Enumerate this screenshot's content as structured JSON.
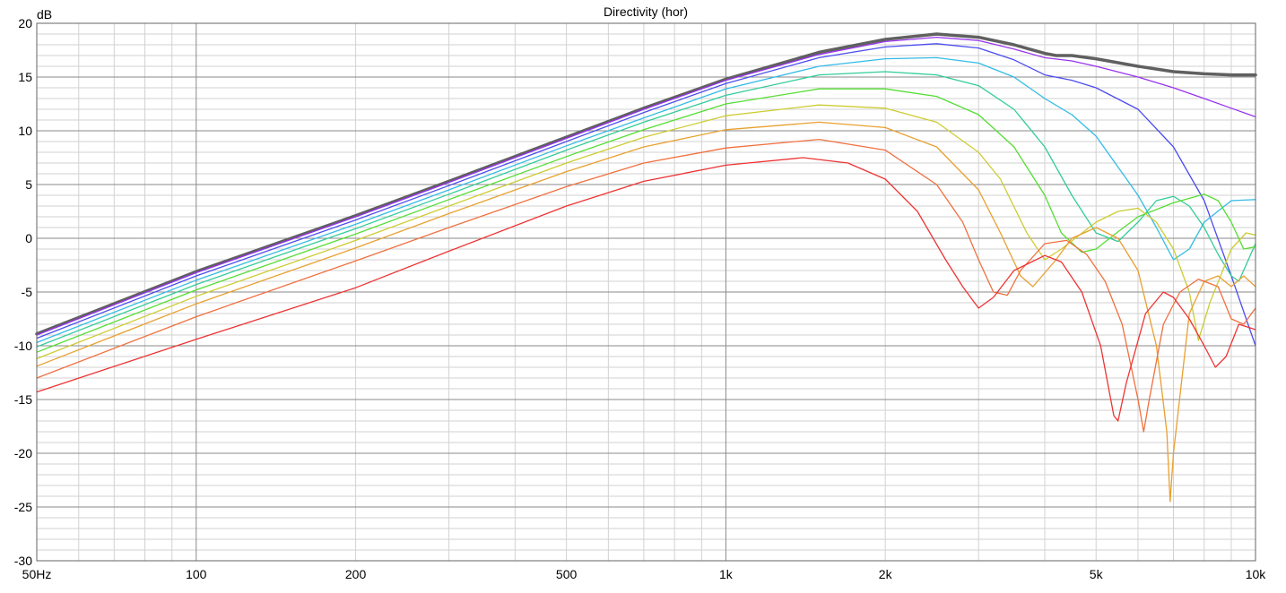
{
  "chart_data": {
    "type": "line",
    "title": "Directivity (hor)",
    "ylabel": "dB",
    "xlabel": "",
    "x_scale": "log",
    "xlim": [
      50,
      10000
    ],
    "ylim": [
      -30,
      20
    ],
    "grid": true,
    "x_ticks": [
      {
        "value": 50,
        "label": "50Hz"
      },
      {
        "value": 100,
        "label": "100"
      },
      {
        "value": 200,
        "label": "200"
      },
      {
        "value": 500,
        "label": "500"
      },
      {
        "value": 1000,
        "label": "1k"
      },
      {
        "value": 2000,
        "label": "2k"
      },
      {
        "value": 5000,
        "label": "5k"
      },
      {
        "value": 10000,
        "label": "10k"
      }
    ],
    "y_ticks": [
      {
        "value": 20,
        "label": "20"
      },
      {
        "value": 15,
        "label": "15"
      },
      {
        "value": 10,
        "label": "10"
      },
      {
        "value": 5,
        "label": "5"
      },
      {
        "value": 0,
        "label": "0"
      },
      {
        "value": -5,
        "label": "-5"
      },
      {
        "value": -10,
        "label": "-10"
      },
      {
        "value": -15,
        "label": "-15"
      },
      {
        "value": -20,
        "label": "-20"
      },
      {
        "value": -25,
        "label": "-25"
      },
      {
        "value": -30,
        "label": "-30"
      }
    ],
    "series": [
      {
        "color": "#606060",
        "width": 3.5,
        "points": [
          [
            50,
            -8.9
          ],
          [
            100,
            -3.1
          ],
          [
            200,
            2.1
          ],
          [
            300,
            5.3
          ],
          [
            500,
            9.4
          ],
          [
            700,
            12.1
          ],
          [
            1000,
            14.8
          ],
          [
            1500,
            17.3
          ],
          [
            2000,
            18.5
          ],
          [
            2500,
            19.0
          ],
          [
            3000,
            18.7
          ],
          [
            3500,
            18.0
          ],
          [
            4000,
            17.2
          ],
          [
            4200,
            17.0
          ],
          [
            4500,
            17.0
          ],
          [
            5000,
            16.7
          ],
          [
            6000,
            16.0
          ],
          [
            7000,
            15.5
          ],
          [
            8000,
            15.3
          ],
          [
            9000,
            15.2
          ],
          [
            10000,
            15.2
          ]
        ]
      },
      {
        "color": "#9933ee",
        "width": 1.3,
        "points": [
          [
            50,
            -9.0
          ],
          [
            100,
            -3.2
          ],
          [
            200,
            2.0
          ],
          [
            300,
            5.2
          ],
          [
            500,
            9.3
          ],
          [
            700,
            12.0
          ],
          [
            1000,
            14.7
          ],
          [
            1500,
            17.1
          ],
          [
            2000,
            18.3
          ],
          [
            2500,
            18.7
          ],
          [
            3000,
            18.4
          ],
          [
            3500,
            17.6
          ],
          [
            4000,
            16.8
          ],
          [
            4500,
            16.5
          ],
          [
            5000,
            16.0
          ],
          [
            6000,
            15.0
          ],
          [
            7000,
            14.0
          ],
          [
            8000,
            13.0
          ],
          [
            9000,
            12.1
          ],
          [
            10000,
            11.3
          ]
        ]
      },
      {
        "color": "#4c4cf0",
        "width": 1.3,
        "points": [
          [
            50,
            -9.3
          ],
          [
            100,
            -3.5
          ],
          [
            200,
            1.7
          ],
          [
            300,
            4.9
          ],
          [
            500,
            9.0
          ],
          [
            700,
            11.7
          ],
          [
            1000,
            14.4
          ],
          [
            1500,
            16.8
          ],
          [
            2000,
            17.8
          ],
          [
            2500,
            18.1
          ],
          [
            3000,
            17.7
          ],
          [
            3500,
            16.6
          ],
          [
            4000,
            15.2
          ],
          [
            4500,
            14.7
          ],
          [
            5000,
            14.0
          ],
          [
            6000,
            12.0
          ],
          [
            7000,
            8.5
          ],
          [
            8000,
            3.5
          ],
          [
            9000,
            -3.5
          ],
          [
            10000,
            -10.0
          ]
        ]
      },
      {
        "color": "#33bbe6",
        "width": 1.3,
        "points": [
          [
            50,
            -9.7
          ],
          [
            100,
            -3.9
          ],
          [
            200,
            1.3
          ],
          [
            300,
            4.5
          ],
          [
            500,
            8.6
          ],
          [
            700,
            11.2
          ],
          [
            1000,
            13.9
          ],
          [
            1500,
            16.0
          ],
          [
            2000,
            16.7
          ],
          [
            2500,
            16.8
          ],
          [
            3000,
            16.3
          ],
          [
            3500,
            15.0
          ],
          [
            4000,
            13.0
          ],
          [
            4500,
            11.5
          ],
          [
            5000,
            9.5
          ],
          [
            6000,
            4.0
          ],
          [
            6500,
            1.0
          ],
          [
            7000,
            -2.0
          ],
          [
            7500,
            -1.0
          ],
          [
            8000,
            1.5
          ],
          [
            9000,
            3.5
          ],
          [
            10000,
            3.6
          ]
        ]
      },
      {
        "color": "#33cc99",
        "width": 1.3,
        "points": [
          [
            50,
            -10.1
          ],
          [
            100,
            -4.3
          ],
          [
            200,
            0.9
          ],
          [
            300,
            4.1
          ],
          [
            500,
            8.2
          ],
          [
            700,
            10.8
          ],
          [
            1000,
            13.3
          ],
          [
            1500,
            15.2
          ],
          [
            2000,
            15.5
          ],
          [
            2500,
            15.2
          ],
          [
            3000,
            14.2
          ],
          [
            3500,
            12.0
          ],
          [
            4000,
            8.5
          ],
          [
            4500,
            4.0
          ],
          [
            5000,
            0.5
          ],
          [
            5500,
            -0.3
          ],
          [
            6000,
            1.5
          ],
          [
            6500,
            3.5
          ],
          [
            7000,
            3.9
          ],
          [
            7500,
            3.0
          ],
          [
            8000,
            1.0
          ],
          [
            8500,
            -1.5
          ],
          [
            9000,
            -3.5
          ],
          [
            9300,
            -4.0
          ],
          [
            10000,
            -0.5
          ]
        ]
      },
      {
        "color": "#55dd33",
        "width": 1.3,
        "points": [
          [
            50,
            -10.6
          ],
          [
            100,
            -4.8
          ],
          [
            200,
            0.4
          ],
          [
            300,
            3.6
          ],
          [
            500,
            7.6
          ],
          [
            700,
            10.1
          ],
          [
            1000,
            12.5
          ],
          [
            1500,
            13.9
          ],
          [
            2000,
            13.9
          ],
          [
            2500,
            13.2
          ],
          [
            3000,
            11.5
          ],
          [
            3500,
            8.5
          ],
          [
            4000,
            4.0
          ],
          [
            4300,
            0.5
          ],
          [
            4700,
            -1.3
          ],
          [
            5000,
            -1.0
          ],
          [
            5500,
            0.6
          ],
          [
            6000,
            2.0
          ],
          [
            7000,
            3.3
          ],
          [
            8000,
            4.1
          ],
          [
            8500,
            3.5
          ],
          [
            9000,
            1.5
          ],
          [
            9500,
            -1.0
          ],
          [
            10000,
            -0.8
          ]
        ]
      },
      {
        "color": "#cccc33",
        "width": 1.3,
        "points": [
          [
            50,
            -11.2
          ],
          [
            100,
            -5.4
          ],
          [
            200,
            -0.2
          ],
          [
            300,
            3.0
          ],
          [
            500,
            7.0
          ],
          [
            700,
            9.4
          ],
          [
            1000,
            11.4
          ],
          [
            1500,
            12.4
          ],
          [
            2000,
            12.1
          ],
          [
            2500,
            10.8
          ],
          [
            3000,
            8.0
          ],
          [
            3300,
            5.5
          ],
          [
            3700,
            0.5
          ],
          [
            4000,
            -2.0
          ],
          [
            4300,
            -1.0
          ],
          [
            5000,
            1.5
          ],
          [
            5500,
            2.5
          ],
          [
            6000,
            2.8
          ],
          [
            6500,
            1.5
          ],
          [
            7000,
            -1.0
          ],
          [
            7500,
            -5.0
          ],
          [
            7800,
            -9.5
          ],
          [
            8200,
            -6.0
          ],
          [
            9000,
            -1.0
          ],
          [
            9600,
            0.5
          ],
          [
            10000,
            0.3
          ]
        ]
      },
      {
        "color": "#e8a030",
        "width": 1.3,
        "points": [
          [
            50,
            -11.9
          ],
          [
            100,
            -6.1
          ],
          [
            200,
            -0.9
          ],
          [
            300,
            2.3
          ],
          [
            500,
            6.2
          ],
          [
            700,
            8.5
          ],
          [
            1000,
            10.1
          ],
          [
            1500,
            10.8
          ],
          [
            2000,
            10.3
          ],
          [
            2500,
            8.5
          ],
          [
            3000,
            4.5
          ],
          [
            3300,
            0.5
          ],
          [
            3600,
            -3.5
          ],
          [
            3800,
            -4.5
          ],
          [
            4200,
            -2.0
          ],
          [
            4500,
            0.0
          ],
          [
            5000,
            1.0
          ],
          [
            5500,
            0.0
          ],
          [
            6000,
            -3.0
          ],
          [
            6500,
            -10.0
          ],
          [
            6800,
            -18.0
          ],
          [
            6900,
            -24.5
          ],
          [
            7000,
            -20.0
          ],
          [
            7500,
            -7.0
          ],
          [
            8000,
            -4.0
          ],
          [
            8500,
            -3.5
          ],
          [
            9000,
            -4.5
          ],
          [
            9500,
            -3.5
          ],
          [
            10000,
            -4.5
          ]
        ]
      },
      {
        "color": "#f07040",
        "width": 1.3,
        "points": [
          [
            50,
            -13.0
          ],
          [
            100,
            -7.3
          ],
          [
            200,
            -2.1
          ],
          [
            300,
            1.0
          ],
          [
            500,
            4.8
          ],
          [
            700,
            7.0
          ],
          [
            1000,
            8.4
          ],
          [
            1500,
            9.2
          ],
          [
            2000,
            8.2
          ],
          [
            2500,
            5.0
          ],
          [
            2800,
            1.5
          ],
          [
            3000,
            -2.0
          ],
          [
            3200,
            -5.0
          ],
          [
            3400,
            -5.3
          ],
          [
            3600,
            -3.0
          ],
          [
            4000,
            -0.5
          ],
          [
            4400,
            -0.2
          ],
          [
            4800,
            -1.5
          ],
          [
            5200,
            -4.0
          ],
          [
            5600,
            -8.0
          ],
          [
            6000,
            -15.0
          ],
          [
            6150,
            -18.0
          ],
          [
            6300,
            -15.0
          ],
          [
            6700,
            -8.0
          ],
          [
            7200,
            -5.0
          ],
          [
            7800,
            -3.8
          ],
          [
            8500,
            -4.5
          ],
          [
            9000,
            -7.5
          ],
          [
            9500,
            -8.0
          ],
          [
            10000,
            -6.5
          ]
        ]
      },
      {
        "color": "#ee3333",
        "width": 1.3,
        "points": [
          [
            50,
            -14.3
          ],
          [
            100,
            -9.4
          ],
          [
            200,
            -4.6
          ],
          [
            300,
            -1.2
          ],
          [
            500,
            3.0
          ],
          [
            700,
            5.3
          ],
          [
            1000,
            6.8
          ],
          [
            1400,
            7.5
          ],
          [
            1700,
            7.0
          ],
          [
            2000,
            5.5
          ],
          [
            2300,
            2.5
          ],
          [
            2600,
            -2.0
          ],
          [
            2800,
            -4.5
          ],
          [
            3000,
            -6.5
          ],
          [
            3200,
            -5.5
          ],
          [
            3500,
            -3.0
          ],
          [
            4000,
            -1.6
          ],
          [
            4300,
            -2.2
          ],
          [
            4700,
            -5.0
          ],
          [
            5100,
            -10.0
          ],
          [
            5400,
            -16.5
          ],
          [
            5500,
            -17.0
          ],
          [
            5700,
            -13.5
          ],
          [
            6200,
            -7.0
          ],
          [
            6700,
            -5.0
          ],
          [
            7000,
            -5.5
          ],
          [
            7500,
            -7.5
          ],
          [
            8000,
            -10.0
          ],
          [
            8400,
            -12.0
          ],
          [
            8800,
            -11.0
          ],
          [
            9300,
            -8.0
          ],
          [
            10000,
            -8.5
          ]
        ]
      }
    ]
  }
}
